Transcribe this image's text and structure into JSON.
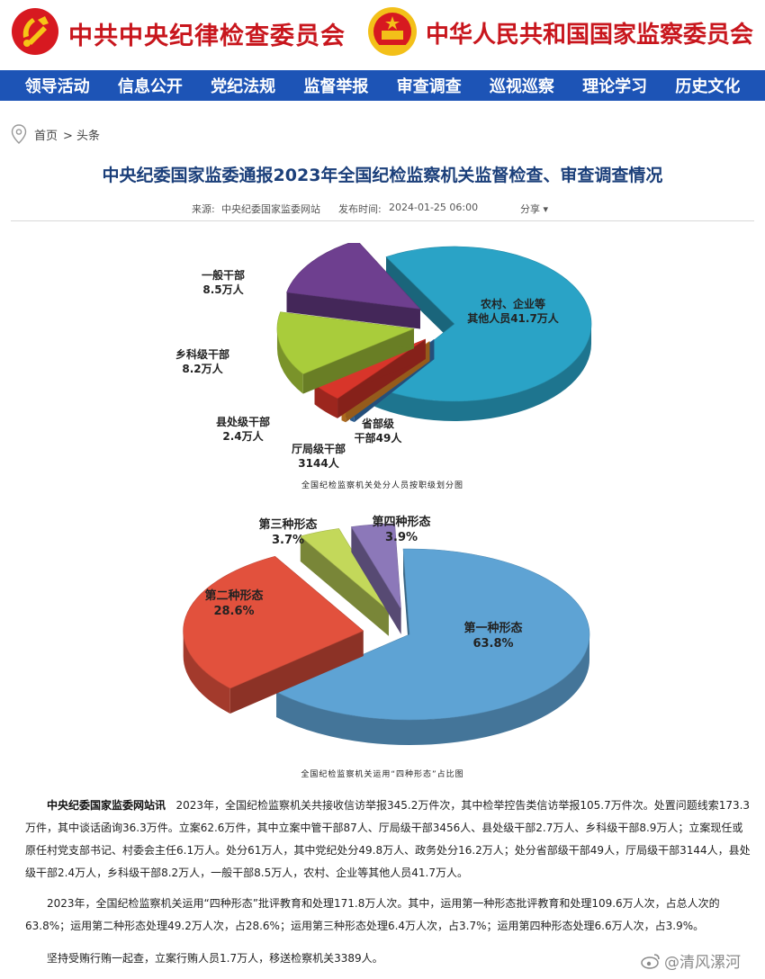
{
  "header": {
    "title_left": "中共中央纪律检查委员会",
    "title_right": "中华人民共和国国家监察委员会",
    "colors": {
      "brand_red": "#c8161d",
      "nav_blue": "#1d54b6"
    },
    "icons": [
      "party-emblem-icon",
      "national-emblem-icon"
    ]
  },
  "nav": {
    "items": [
      "领导活动",
      "信息公开",
      "党纪法规",
      "监督举报",
      "审查调查",
      "巡视巡察",
      "理论学习",
      "历史文化"
    ]
  },
  "breadcrumb": {
    "home": "首页",
    "current": "> 头条"
  },
  "article": {
    "title": "中央纪委国家监委通报2023年全国纪检监察机关监督检查、审查调查情况",
    "source_label": "来源:",
    "source": "中央纪委国家监委网站",
    "time_label": "发布时间:",
    "time": "2024-01-25 06:00",
    "share": "分享",
    "p1_lead": "中央纪委国家监委网站讯",
    "p1": "2023年，全国纪检监察机关共接收信访举报345.2万件次，其中检举控告类信访举报105.7万件次。处置问题线索173.3万件，其中谈话函询36.3万件。立案62.6万件，其中立案中管干部87人、厅局级干部3456人、县处级干部2.7万人、乡科级干部8.9万人；立案现任或原任村党支部书记、村委会主任6.1万人。处分61万人，其中党纪处分49.8万人、政务处分16.2万人；处分省部级干部49人，厅局级干部3144人，县处级干部2.4万人，乡科级干部8.2万人，一般干部8.5万人，农村、企业等其他人员41.7万人。",
    "p2": "2023年，全国纪检监察机关运用“四种形态”批评教育和处理171.8万人次。其中，运用第一种形态批评教育和处理109.6万人次，占总人次的63.8%；运用第二种形态处理49.2万人次，占28.6%；运用第三种形态处理6.4万人次，占3.7%；运用第四种形态处理6.6万人次，占3.9%。",
    "p3": "坚持受贿行贿一起查，立案行贿人员1.7万人，移送检察机关3389人。"
  },
  "watermark": {
    "text": "@清风漯河",
    "icon": "weibo-icon"
  },
  "chart_data": [
    {
      "type": "pie",
      "title": "全国纪检监察机关处分人员按职级划分图",
      "unit": "万人",
      "slices": [
        {
          "label_lines": [
            "农村、企业等",
            "其他人员41.7万人"
          ],
          "value": 41.7,
          "color": "#2aa3c6"
        },
        {
          "label_lines": [
            "省部级",
            "干部49人"
          ],
          "value": 0.0049,
          "color": "#3a7fc7"
        },
        {
          "label_lines": [
            "厅局级干部",
            "3144人"
          ],
          "value": 0.3144,
          "color": "#f0932b"
        },
        {
          "label_lines": [
            "县处级干部",
            "2.4万人"
          ],
          "value": 2.4,
          "color": "#d8352a"
        },
        {
          "label_lines": [
            "乡科级干部",
            "8.2万人"
          ],
          "value": 8.2,
          "color": "#a9cc3b"
        },
        {
          "label_lines": [
            "一般干部",
            "8.5万人"
          ],
          "value": 8.5,
          "color": "#6e3f8f"
        }
      ]
    },
    {
      "type": "pie",
      "title": "全国纪检监察机关运用“四种形态”占比图",
      "unit": "%",
      "slices": [
        {
          "label_lines": [
            "第一种形态",
            "63.8%"
          ],
          "value": 63.8,
          "color": "#5ea3d4"
        },
        {
          "label_lines": [
            "第二种形态",
            "28.6%"
          ],
          "value": 28.6,
          "color": "#e2513d"
        },
        {
          "label_lines": [
            "第三种形态",
            "3.7%"
          ],
          "value": 3.7,
          "color": "#c3d85a"
        },
        {
          "label_lines": [
            "第四种形态",
            "3.9%"
          ],
          "value": 3.9,
          "color": "#8c78b9"
        }
      ]
    }
  ]
}
